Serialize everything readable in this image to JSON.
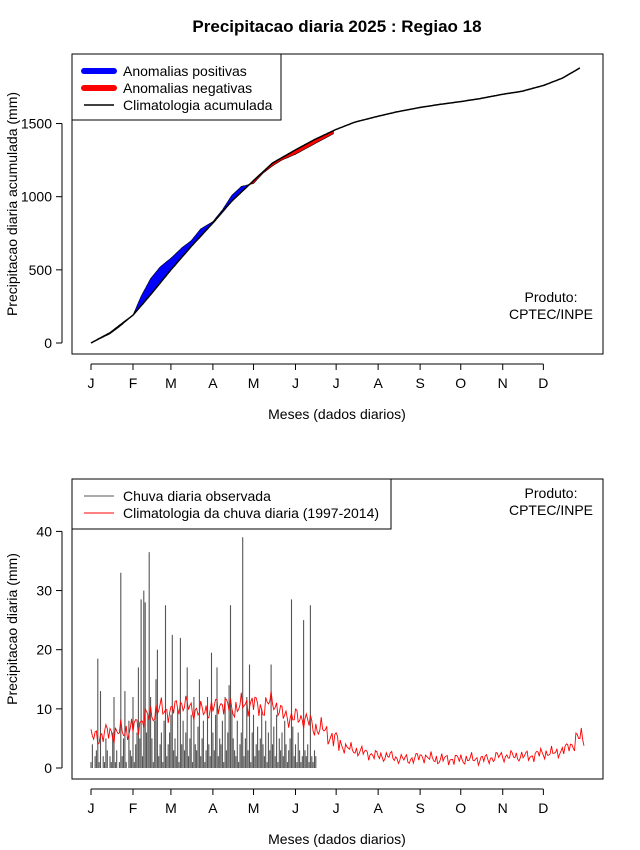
{
  "chart_data": [
    {
      "type": "area",
      "title": "Precipitacao diaria 2025 : Regiao 18",
      "xlabel": "Meses (dados diarios)",
      "ylabel": "Precipitacao diaria acumulada (mm)",
      "x_ticks": [
        "J",
        "F",
        "M",
        "A",
        "M",
        "J",
        "J",
        "A",
        "S",
        "O",
        "N",
        "D"
      ],
      "y_ticks": [
        0,
        500,
        1000,
        1500
      ],
      "xlim": [
        1,
        365
      ],
      "ylim": [
        0,
        1900
      ],
      "legend_position": "top-left",
      "legend": [
        {
          "label": "Anomalias positivas",
          "color": "#0000ff"
        },
        {
          "label": "Anomalias negativas",
          "color": "#ff0000"
        },
        {
          "label": "Climatologia acumulada",
          "color": "#000000"
        }
      ],
      "annotation": [
        "Produto:",
        "CPTEC/INPE"
      ],
      "climatology_cumulative": {
        "day": [
          1,
          15,
          32,
          45,
          60,
          75,
          91,
          105,
          121,
          135,
          152,
          166,
          182,
          196,
          213,
          227,
          244,
          258,
          274,
          288,
          305,
          319,
          335,
          349,
          362
        ],
        "mm": [
          0,
          70,
          190,
          330,
          500,
          660,
          820,
          970,
          1110,
          1230,
          1320,
          1390,
          1460,
          1510,
          1550,
          1580,
          1610,
          1630,
          1650,
          1670,
          1700,
          1720,
          1760,
          1810,
          1880
        ]
      },
      "observed_cumulative": {
        "day": [
          1,
          15,
          22,
          32,
          38,
          45,
          52,
          60,
          68,
          75,
          82,
          91,
          98,
          105,
          112,
          121,
          128,
          135,
          142,
          152,
          160,
          166,
          174,
          180
        ],
        "mm": [
          0,
          62,
          110,
          190,
          320,
          440,
          520,
          580,
          650,
          700,
          780,
          830,
          910,
          1010,
          1070,
          1090,
          1160,
          1210,
          1250,
          1290,
          1330,
          1360,
          1400,
          1430
        ]
      },
      "positive_color": "#0000ff",
      "negative_color": "#ff0000"
    },
    {
      "type": "bar",
      "xlabel": "Meses (dados diarios)",
      "ylabel": "Precipitacao diaria (mm)",
      "x_ticks": [
        "J",
        "F",
        "M",
        "A",
        "M",
        "J",
        "J",
        "A",
        "S",
        "O",
        "N",
        "D"
      ],
      "y_ticks": [
        0,
        10,
        20,
        30,
        40
      ],
      "xlim": [
        1,
        365
      ],
      "ylim": [
        0,
        47
      ],
      "legend_position": "top-left",
      "legend": [
        {
          "label": "Chuva diaria observada",
          "color": "#555555"
        },
        {
          "label": "Climatologia da chuva diaria (1997-2014)",
          "color": "#ff0000"
        }
      ],
      "annotation": [
        "Produto:",
        "CPTEC/INPE"
      ],
      "observed_daily": {
        "day_start": 1,
        "values": [
          1,
          4,
          0,
          2,
          3,
          18.5,
          1,
          13,
          0,
          2,
          1,
          5,
          3,
          0,
          2,
          1,
          6,
          12,
          1,
          3,
          0,
          1,
          33,
          2,
          5,
          13,
          1,
          0,
          8,
          3,
          2,
          12,
          1,
          4,
          6,
          17,
          5,
          28.5,
          2,
          30,
          28,
          6,
          9,
          36.5,
          12,
          5,
          1,
          8,
          15,
          20,
          2,
          4,
          6,
          1,
          8,
          27.5,
          2,
          4,
          6,
          9,
          22.5,
          3,
          5,
          2,
          10,
          1,
          22,
          4,
          8,
          3,
          6,
          17,
          2,
          5,
          9,
          1,
          12,
          4,
          3,
          7,
          15,
          2,
          5,
          8,
          1,
          3,
          12,
          4,
          2,
          19.5,
          6,
          3,
          9,
          17,
          2,
          5,
          4,
          8,
          1,
          12,
          3,
          6,
          14,
          27.5,
          10,
          5,
          3,
          2,
          8,
          1,
          4,
          6,
          39,
          2,
          5,
          12,
          3,
          17.5,
          1,
          6,
          9,
          2,
          4,
          7,
          3,
          5,
          10,
          4,
          2,
          8,
          1,
          6,
          3,
          17.5,
          4,
          7,
          2,
          9,
          1,
          5,
          3,
          6,
          2,
          8,
          4,
          1,
          3,
          5,
          28.5,
          7,
          2,
          4,
          1,
          6,
          3,
          1,
          2,
          25,
          3,
          2,
          4,
          1,
          27.5,
          2,
          1,
          3,
          2
        ]
      },
      "climatology_daily": {
        "day": [
          1,
          8,
          15,
          22,
          30,
          38,
          45,
          52,
          60,
          68,
          75,
          82,
          90,
          98,
          105,
          112,
          120,
          128,
          135,
          142,
          150,
          158,
          165,
          172,
          180,
          188,
          196,
          205,
          213,
          222,
          230,
          238,
          246,
          254,
          262,
          270,
          278,
          286,
          294,
          302,
          310,
          318,
          326,
          334,
          342,
          350,
          356,
          360,
          365
        ],
        "mm": [
          5,
          5.5,
          6,
          6,
          6.5,
          8,
          9,
          10,
          9.5,
          11,
          10,
          9.5,
          10,
          11,
          10,
          10.5,
          11,
          10,
          11.5,
          9,
          8.5,
          8.5,
          7,
          6.5,
          5,
          3.5,
          3,
          2.5,
          2,
          2,
          1.5,
          1.5,
          2,
          1.5,
          1.5,
          1.5,
          1.5,
          1.5,
          1.5,
          2,
          2,
          2,
          2,
          2.5,
          2.5,
          3,
          4,
          5,
          5
        ]
      },
      "observed_color": "#555555",
      "climatology_color": "#ff0000"
    }
  ]
}
